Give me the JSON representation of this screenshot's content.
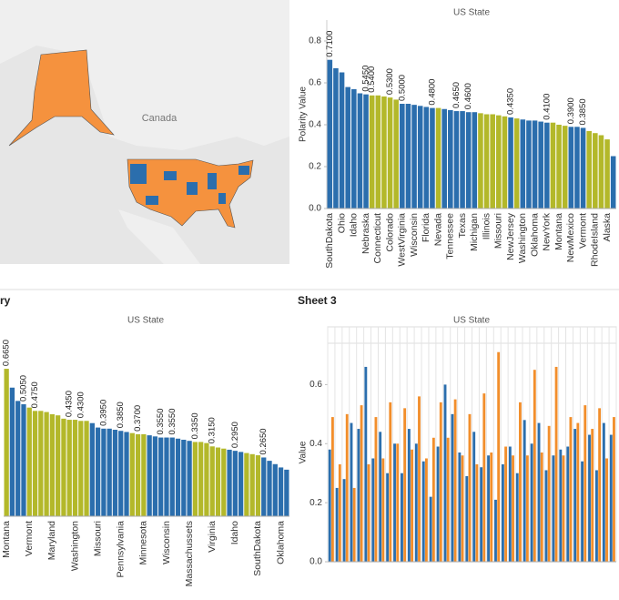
{
  "map": {
    "label": "Canada"
  },
  "headers": {
    "left": "ry",
    "right": "Sheet 3"
  },
  "chart_data": [
    {
      "type": "bar",
      "title": "US State",
      "y_label": "Polarity Value",
      "categories": [
        "SouthDakota",
        null,
        "Ohio",
        null,
        "Idaho",
        null,
        "Nebraska",
        null,
        "Connecticut",
        null,
        "Colorado",
        null,
        "WestVirginia",
        null,
        "Wisconsin",
        null,
        "Florida",
        null,
        "Nevada",
        null,
        "Tennessee",
        null,
        "Texas",
        null,
        "Michigan",
        null,
        "Illinois",
        null,
        "Missouri",
        null,
        "NewJersey",
        null,
        "Washington",
        null,
        "Oklahoma",
        null,
        "NewYork",
        null,
        "Montana",
        null,
        "NewMexico",
        null,
        "Vermont",
        null,
        "RhodeIsland",
        null,
        "Alaska",
        null
      ],
      "values": [
        0.71,
        0.67,
        0.65,
        0.58,
        0.57,
        0.55,
        0.545,
        0.54,
        0.54,
        0.535,
        0.53,
        0.52,
        0.5,
        0.5,
        0.495,
        0.49,
        0.485,
        0.48,
        0.48,
        0.475,
        0.47,
        0.465,
        0.465,
        0.46,
        0.46,
        0.455,
        0.45,
        0.45,
        0.445,
        0.44,
        0.435,
        0.43,
        0.425,
        0.42,
        0.42,
        0.415,
        0.41,
        0.41,
        0.4,
        0.395,
        0.39,
        0.39,
        0.385,
        0.37,
        0.36,
        0.35,
        0.33,
        0.25
      ],
      "value_labels": [
        "0.7100",
        null,
        null,
        null,
        null,
        null,
        "0.5450",
        "0.5400",
        null,
        null,
        "0.5300",
        null,
        "0.5000",
        null,
        null,
        null,
        null,
        "0.4800",
        null,
        null,
        null,
        "0.4650",
        null,
        "0.4600",
        null,
        null,
        null,
        null,
        null,
        null,
        "0.4350",
        null,
        null,
        null,
        null,
        null,
        "0.4100",
        null,
        null,
        null,
        "0.3900",
        null,
        "0.3850",
        null,
        null,
        null,
        null,
        null
      ],
      "colors": [
        "#2b6ead",
        "#2b6ead",
        "#2b6ead",
        "#2b6ead",
        "#2b6ead",
        "#2b6ead",
        "#2b6ead",
        "#b3b82a",
        "#b3b82a",
        "#b3b82a",
        "#b3b82a",
        "#b3b82a",
        "#2b6ead",
        "#2b6ead",
        "#2b6ead",
        "#2b6ead",
        "#2b6ead",
        "#2b6ead",
        "#b3b82a",
        "#2b6ead",
        "#2b6ead",
        "#2b6ead",
        "#2b6ead",
        "#2b6ead",
        "#2b6ead",
        "#b3b82a",
        "#b3b82a",
        "#b3b82a",
        "#b3b82a",
        "#b3b82a",
        "#2b6ead",
        "#b3b82a",
        "#2b6ead",
        "#2b6ead",
        "#2b6ead",
        "#2b6ead",
        "#2b6ead",
        "#b3b82a",
        "#b3b82a",
        "#b3b82a",
        "#2b6ead",
        "#2b6ead",
        "#2b6ead",
        "#b3b82a",
        "#b3b82a",
        "#b3b82a",
        "#b3b82a",
        "#2b6ead"
      ],
      "ylim": [
        0,
        0.9
      ],
      "yticks": [
        {
          "value": 0,
          "label": "0.0"
        },
        0.2,
        0.4,
        0.6,
        0.8
      ]
    },
    {
      "type": "bar",
      "title": "US State",
      "categories": [
        "Montana",
        null,
        null,
        null,
        "Vermont",
        null,
        null,
        null,
        "Maryland",
        null,
        null,
        null,
        "Washington",
        null,
        null,
        null,
        "Missouri",
        null,
        null,
        null,
        "Pennsylvania",
        null,
        null,
        null,
        "Minnesota",
        null,
        null,
        null,
        "Wisconsin",
        null,
        null,
        null,
        "Massachussets",
        null,
        null,
        null,
        "Virginia",
        null,
        null,
        null,
        "Idaho",
        null,
        null,
        null,
        "SouthDakota",
        null,
        null,
        null,
        "Oklahoma",
        null
      ],
      "values": [
        0.665,
        0.58,
        0.52,
        0.505,
        0.49,
        0.475,
        0.475,
        0.47,
        0.46,
        0.455,
        0.44,
        0.435,
        0.435,
        0.43,
        0.43,
        0.42,
        0.4,
        0.395,
        0.395,
        0.39,
        0.385,
        0.38,
        0.375,
        0.37,
        0.37,
        0.365,
        0.36,
        0.355,
        0.355,
        0.355,
        0.35,
        0.345,
        0.34,
        0.335,
        0.335,
        0.33,
        0.315,
        0.31,
        0.305,
        0.3,
        0.295,
        0.29,
        0.285,
        0.28,
        0.275,
        0.265,
        0.25,
        0.235,
        0.22,
        0.21
      ],
      "value_labels": [
        "0.6650",
        null,
        null,
        "0.5050",
        null,
        "0.4750",
        null,
        null,
        null,
        null,
        null,
        "0.4350",
        null,
        "0.4300",
        null,
        null,
        null,
        "0.3950",
        null,
        null,
        "0.3850",
        null,
        null,
        "0.3700",
        null,
        null,
        null,
        "0.3550",
        null,
        "0.3550",
        null,
        null,
        null,
        "0.3350",
        null,
        null,
        "0.3150",
        null,
        null,
        null,
        "0.2950",
        null,
        null,
        null,
        null,
        "0.2650",
        null,
        null,
        null,
        null
      ],
      "colors": [
        "#b3b82a",
        "#2b6ead",
        "#2b6ead",
        "#2b6ead",
        "#b3b82a",
        "#b3b82a",
        "#b3b82a",
        "#b3b82a",
        "#b3b82a",
        "#b3b82a",
        "#b3b82a",
        "#b3b82a",
        "#b3b82a",
        "#b3b82a",
        "#b3b82a",
        "#2b6ead",
        "#2b6ead",
        "#2b6ead",
        "#2b6ead",
        "#2b6ead",
        "#2b6ead",
        "#2b6ead",
        "#b3b82a",
        "#b3b82a",
        "#b3b82a",
        "#2b6ead",
        "#2b6ead",
        "#2b6ead",
        "#2b6ead",
        "#2b6ead",
        "#2b6ead",
        "#2b6ead",
        "#2b6ead",
        "#b3b82a",
        "#b3b82a",
        "#b3b82a",
        "#b3b82a",
        "#b3b82a",
        "#b3b82a",
        "#2b6ead",
        "#2b6ead",
        "#2b6ead",
        "#b3b82a",
        "#b3b82a",
        "#b3b82a",
        "#2b6ead",
        "#2b6ead",
        "#2b6ead",
        "#2b6ead",
        "#2b6ead"
      ],
      "ylim": [
        0,
        0.85
      ]
    },
    {
      "type": "grouped_bar",
      "title": "US State",
      "y_label": "Value",
      "series": [
        {
          "color": "#2b6ead",
          "values": [
            0.38,
            0.25,
            0.28,
            0.47,
            0.45,
            0.66,
            0.35,
            0.44,
            0.3,
            0.4,
            0.3,
            0.45,
            0.4,
            0.34,
            0.22,
            0.39,
            0.6,
            0.5,
            0.37,
            0.29,
            0.44,
            0.32,
            0.36,
            0.21,
            0.33,
            0.39,
            0.3,
            0.48,
            0.4,
            0.47,
            0.31,
            0.36,
            0.38,
            0.39,
            0.45,
            0.34,
            0.43,
            0.31,
            0.47,
            0.43
          ]
        },
        {
          "color": "#f28e2b",
          "values": [
            0.49,
            0.33,
            0.5,
            0.25,
            0.53,
            0.33,
            0.49,
            0.35,
            0.54,
            0.4,
            0.52,
            0.38,
            0.56,
            0.35,
            0.42,
            0.54,
            0.42,
            0.55,
            0.36,
            0.5,
            0.33,
            0.57,
            0.37,
            0.71,
            0.39,
            0.36,
            0.54,
            0.36,
            0.65,
            0.37,
            0.46,
            0.66,
            0.36,
            0.49,
            0.47,
            0.53,
            0.45,
            0.52,
            0.35,
            0.49
          ]
        }
      ],
      "ylim": [
        0,
        0.74
      ],
      "yticks": [
        {
          "value": 0,
          "label": "0.0"
        },
        0.2,
        0.4,
        0.6
      ]
    }
  ]
}
